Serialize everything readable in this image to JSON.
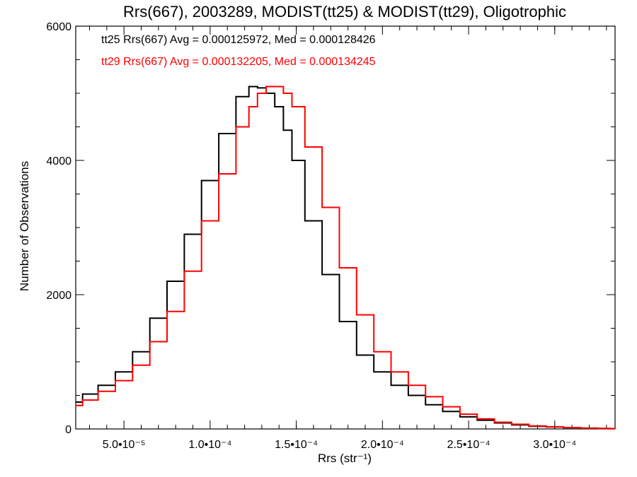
{
  "chart_data": {
    "type": "line",
    "title": "Rrs(667), 2003289, MODIST(tt25) & MODIST(tt29), Oligotrophic",
    "xlabel": "Rrs (str⁻¹)",
    "ylabel": "Number of Observations",
    "xlim": [
      2.2e-05,
      0.000335
    ],
    "ylim": [
      0,
      6000
    ],
    "x_ticks": [
      {
        "value": 5e-05,
        "label": "5.0•10⁻⁵"
      },
      {
        "value": 0.0001,
        "label": "1.0•10⁻⁴"
      },
      {
        "value": 0.00015,
        "label": "1.5•10⁻⁴"
      },
      {
        "value": 0.0002,
        "label": "2.0•10⁻⁴"
      },
      {
        "value": 0.00025,
        "label": "2.5•10⁻⁴"
      },
      {
        "value": 0.0003,
        "label": "3.0•10⁻⁴"
      }
    ],
    "y_ticks": [
      {
        "value": 0,
        "label": "0"
      },
      {
        "value": 2000,
        "label": "2000"
      },
      {
        "value": 4000,
        "label": "4000"
      },
      {
        "value": 6000,
        "label": "6000"
      }
    ],
    "grid": false,
    "legend_position": "top-left",
    "series": [
      {
        "label": "tt25 Rrs(667) Avg = 0.000125972, Med = 0.000128426",
        "color": "#000000",
        "x": [
          2.2e-05,
          3e-05,
          4e-05,
          5e-05,
          6e-05,
          7e-05,
          8e-05,
          9e-05,
          0.0001,
          0.00011,
          0.00012,
          0.000125,
          0.00013,
          0.000135,
          0.00014,
          0.000145,
          0.00015,
          0.00016,
          0.00017,
          0.00018,
          0.00019,
          0.0002,
          0.00021,
          0.00022,
          0.00023,
          0.00024,
          0.00025,
          0.00026,
          0.00027,
          0.00028,
          0.00029,
          0.0003,
          0.00031,
          0.00032,
          0.00033,
          0.000335
        ],
        "y": [
          400,
          520,
          650,
          850,
          1150,
          1650,
          2200,
          2900,
          3700,
          4400,
          4950,
          5100,
          5080,
          5000,
          4800,
          4450,
          4000,
          3100,
          2300,
          1600,
          1100,
          850,
          650,
          500,
          360,
          260,
          180,
          130,
          90,
          60,
          40,
          30,
          20,
          12,
          6,
          4
        ]
      },
      {
        "label": "tt29 Rrs(667) Avg = 0.000132205, Med = 0.000134245",
        "color": "#ff0000",
        "x": [
          2.2e-05,
          3e-05,
          4e-05,
          5e-05,
          6e-05,
          7e-05,
          8e-05,
          9e-05,
          0.0001,
          0.00011,
          0.00012,
          0.000125,
          0.00013,
          0.000135,
          0.00014,
          0.000145,
          0.00015,
          0.00016,
          0.00017,
          0.00018,
          0.00019,
          0.0002,
          0.00021,
          0.00022,
          0.00023,
          0.00024,
          0.00025,
          0.00026,
          0.00027,
          0.00028,
          0.00029,
          0.0003,
          0.00031,
          0.00032,
          0.00033,
          0.000335
        ],
        "y": [
          350,
          430,
          560,
          720,
          950,
          1300,
          1750,
          2350,
          3100,
          3800,
          4500,
          4800,
          5000,
          5100,
          5100,
          5000,
          4800,
          4200,
          3300,
          2400,
          1700,
          1150,
          850,
          650,
          480,
          330,
          220,
          150,
          100,
          70,
          45,
          30,
          20,
          12,
          7,
          4
        ]
      }
    ]
  }
}
